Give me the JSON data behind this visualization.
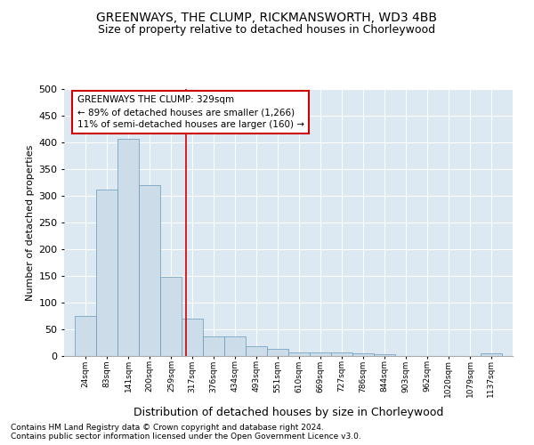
{
  "title": "GREENWAYS, THE CLUMP, RICKMANSWORTH, WD3 4BB",
  "subtitle": "Size of property relative to detached houses in Chorleywood",
  "xlabel": "Distribution of detached houses by size in Chorleywood",
  "ylabel": "Number of detached properties",
  "footer1": "Contains HM Land Registry data © Crown copyright and database right 2024.",
  "footer2": "Contains public sector information licensed under the Open Government Licence v3.0.",
  "bar_color": "#ccdce8",
  "bar_edge_color": "#6699bb",
  "vline_value": 329,
  "vline_color": "#cc0000",
  "annotation_title": "GREENWAYS THE CLUMP: 329sqm",
  "annotation_line1": "← 89% of detached houses are smaller (1,266)",
  "annotation_line2": "11% of semi-detached houses are larger (160) →",
  "annotation_box_color": "#ffffff",
  "annotation_box_edge": "#cc0000",
  "bins": [
    24,
    83,
    141,
    200,
    259,
    317,
    376,
    434,
    493,
    551,
    610,
    669,
    727,
    786,
    844,
    903,
    962,
    1020,
    1079,
    1137,
    1196
  ],
  "counts": [
    75,
    312,
    407,
    320,
    148,
    70,
    37,
    37,
    18,
    13,
    7,
    6,
    6,
    5,
    4,
    0,
    0,
    0,
    0,
    5
  ],
  "ylim": [
    0,
    500
  ],
  "yticks": [
    0,
    50,
    100,
    150,
    200,
    250,
    300,
    350,
    400,
    450,
    500
  ],
  "background_color": "#dce8f2",
  "title_fontsize": 10,
  "subtitle_fontsize": 9,
  "footer_fontsize": 6.5,
  "ylabel_fontsize": 8,
  "xlabel_fontsize": 9
}
